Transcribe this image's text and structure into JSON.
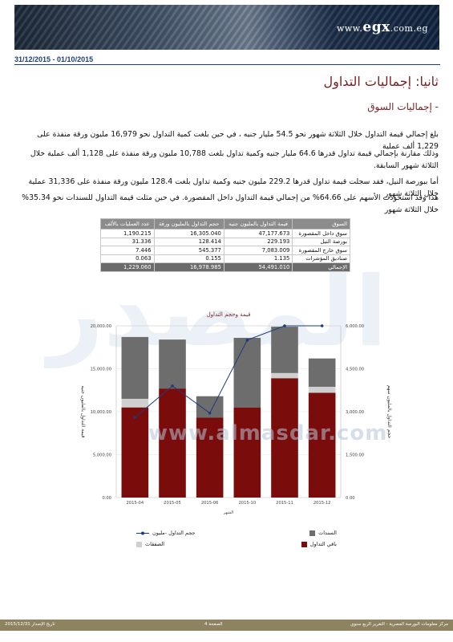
{
  "header": {
    "logo_main": "egx",
    "logo_prefix": "www.",
    "logo_suffix": ".com.eg",
    "date_range": "31/12/2015 - 01/10/2015"
  },
  "section_title": "ثانيا: إجماليات التداول",
  "sub_title": "- إجماليات السوق",
  "paragraphs": [
    "بلغ إجمالي قيمة التداول خلال الثلاثة شهور نحو 54.5 مليار جنيه ، في حين بلغت كمية التداول نحو 16,979 مليون ورقة منفذة على 1,229 ألف عملية",
    "وذلك مقارنة بإجمالي قيمة تداول قدرها 64.6 مليار جنيه وكمية تداول بلغت 10,788 مليون ورقة منفذة على 1,128 ألف عملية خلال الثلاثة شهور السابقة.",
    "أما ببورصة النيل، فقد سجلت قيمة تداول قدرها 229.2 مليون جنيه وكمية تداول بلغت 128.4 مليون ورقة منفذة على 31,336 عملية خلال الثلاثة شهور",
    "هذا وقد استحوذت الأسهم على 64.66% من إجمالي قيمة التداول داخل المقصورة. في حين مثلت قيمة التداول للسندات نحو 35.34% خلال الثلاثة شهور"
  ],
  "table": {
    "headers": [
      "السوق",
      "قيمة التداول بالمليون جنيه",
      "حجم التداول بالمليون ورقة",
      "عدد العمليات بالألف"
    ],
    "rows": [
      [
        "سوق داخل المقصورة",
        "47,177.673",
        "16,305.040",
        "1,190.215"
      ],
      [
        "بورصة النيل",
        "229.193",
        "128.414",
        "31.336"
      ],
      [
        "سوق خارج المقصورة",
        "7,083.009",
        "545.377",
        "7.446"
      ],
      [
        "صناديق المؤشرات",
        "1.135",
        "0.155",
        "0.063"
      ]
    ],
    "total": [
      "الإجمالي",
      "54,491.010",
      "16,978.985",
      "1,229.060"
    ]
  },
  "watermark": {
    "brand_arabic": "المصدر",
    "url": "www.almasdar.com"
  },
  "chart_data": {
    "type": "bar",
    "title": "قيمة وحجم التداول",
    "xlabel": "الشهر",
    "ylabel_left": "قيمة التداول بالمليون جنيه",
    "ylabel_right": "حجم التداول بالمليون سهم",
    "categories": [
      "2015-04",
      "2015-05",
      "2015-06",
      "2015-10",
      "2015-11",
      "2015-12"
    ],
    "ylim_left": [
      0,
      20000
    ],
    "ylim_right": [
      0,
      6000
    ],
    "left_ticks": [
      "0.00",
      "5,000.00",
      "10,000.00",
      "15,000.00",
      "20,000.00"
    ],
    "right_ticks": [
      "0.00",
      "1,500.00",
      "3,000.00",
      "4,500.00",
      "6,000.00"
    ],
    "series": [
      {
        "name": "باقي التداول",
        "color": "#7a0c0c",
        "values": [
          10500,
          12700,
          9300,
          10500,
          13900,
          12200
        ]
      },
      {
        "name": "الصفقات",
        "color": "#d0d0d0",
        "values": [
          1000,
          0,
          0,
          0,
          600,
          700
        ]
      },
      {
        "name": "السندات",
        "color": "#6d6d6d",
        "values": [
          7200,
          5700,
          2500,
          8100,
          5400,
          3300
        ]
      },
      {
        "name": "حجم التداول -مليون",
        "color": "#1f3a7a",
        "axis": "right",
        "values": [
          2800,
          3900,
          2950,
          5500,
          6000,
          6000
        ]
      }
    ]
  },
  "footer": {
    "left": "تاريخ الإصدار 2015/12/31",
    "center": "الصفحة 4",
    "right": "مركز معلومات البورصة المصرية - التقرير الربع سنوي"
  }
}
